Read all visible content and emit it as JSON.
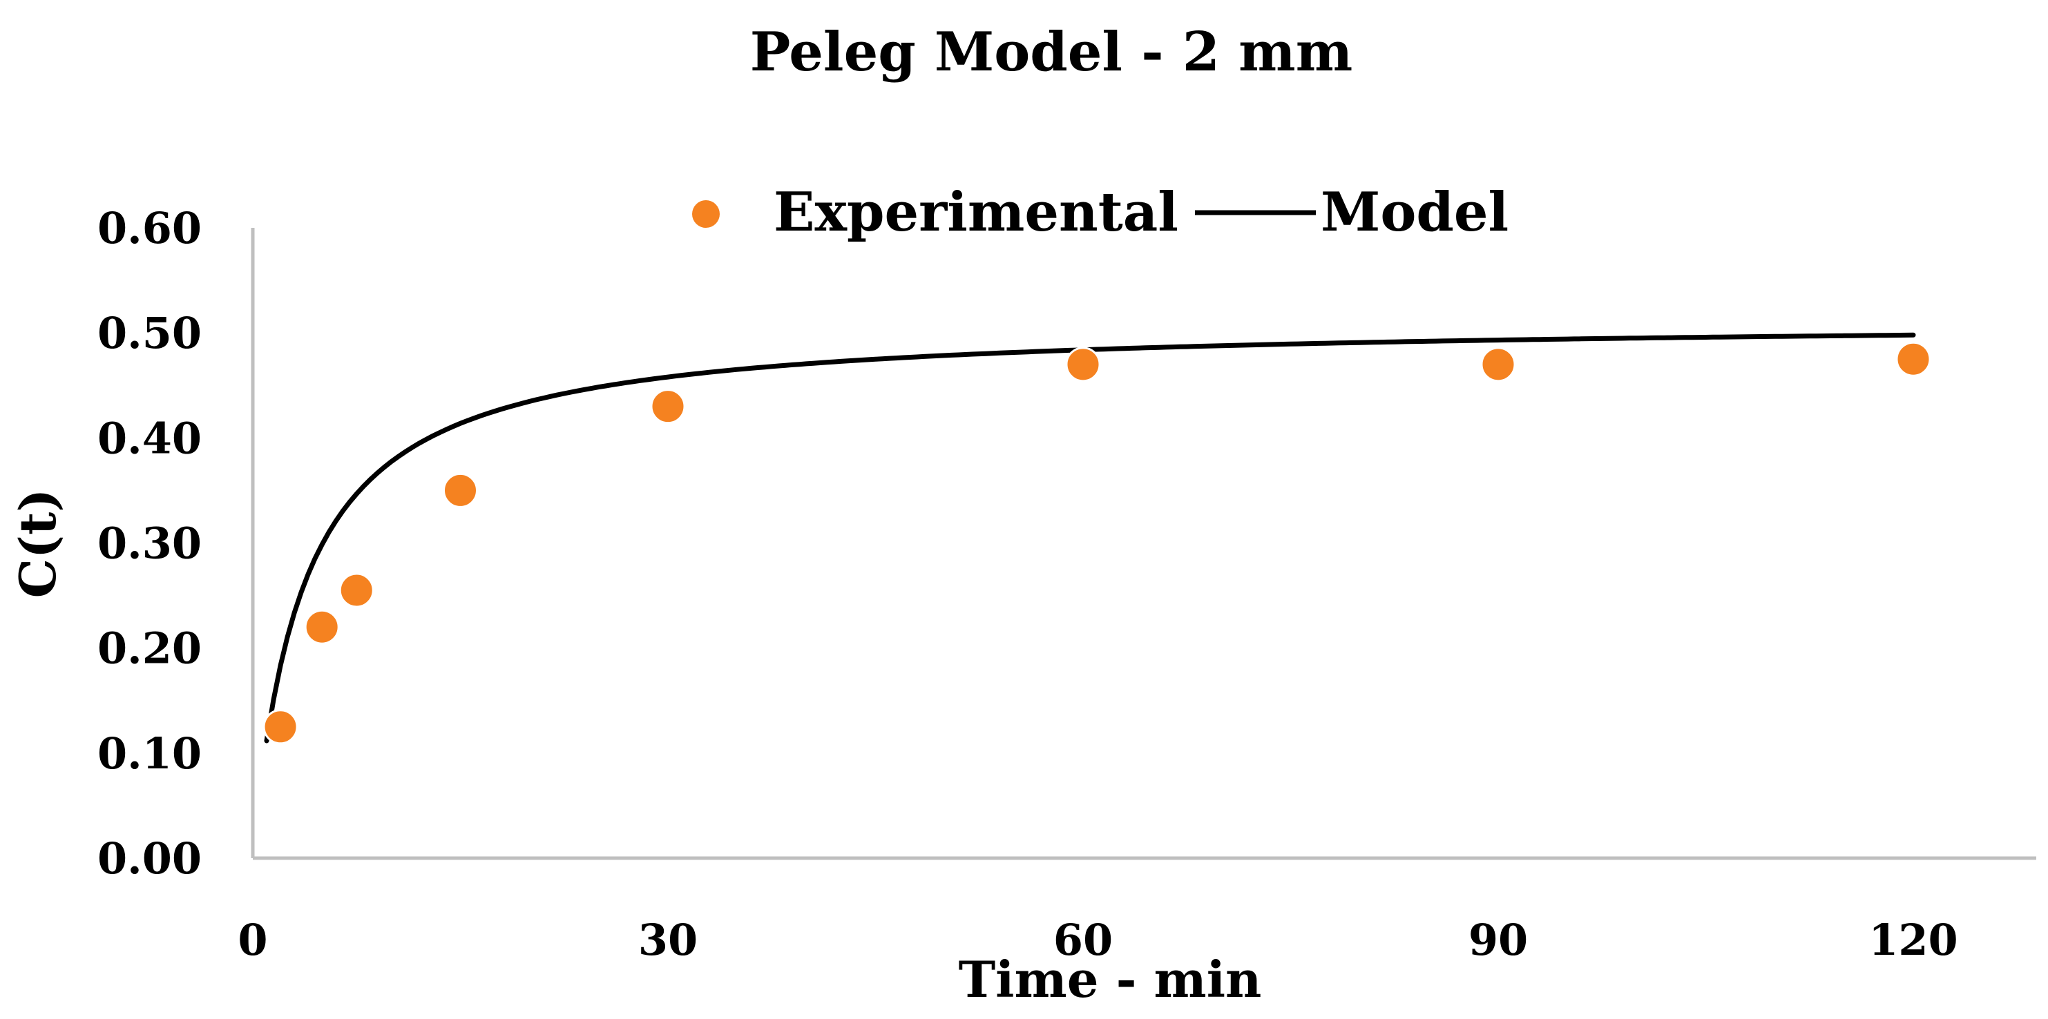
{
  "chart_data": {
    "type": "scatter",
    "title": "Peleg Model - 2 mm",
    "xlabel": "Time - min",
    "ylabel": "C(t)",
    "xlim": [
      0,
      130
    ],
    "ylim": [
      0,
      0.6
    ],
    "x_ticks": [
      0,
      30,
      60,
      90,
      120
    ],
    "y_ticks": [
      0.0,
      0.1,
      0.2,
      0.3,
      0.4,
      0.5,
      0.6
    ],
    "x_tick_labels": [
      "0",
      "30",
      "60",
      "90",
      "120"
    ],
    "y_tick_labels": [
      "0.00",
      "0.10",
      "0.20",
      "0.30",
      "0.40",
      "0.50",
      "0.60"
    ],
    "grid": false,
    "legend_position": "top-center",
    "series": [
      {
        "name": "Experimental",
        "kind": "points",
        "color": "#F58220",
        "x": [
          2,
          5,
          7.5,
          15,
          30,
          60,
          90,
          120
        ],
        "y": [
          0.125,
          0.22,
          0.255,
          0.35,
          0.43,
          0.47,
          0.47,
          0.475
        ]
      },
      {
        "name": "Model",
        "kind": "line",
        "color": "#000000",
        "model": "peleg",
        "k1": 7.0,
        "k2": 1.95,
        "x_range": [
          1,
          120
        ]
      }
    ]
  }
}
